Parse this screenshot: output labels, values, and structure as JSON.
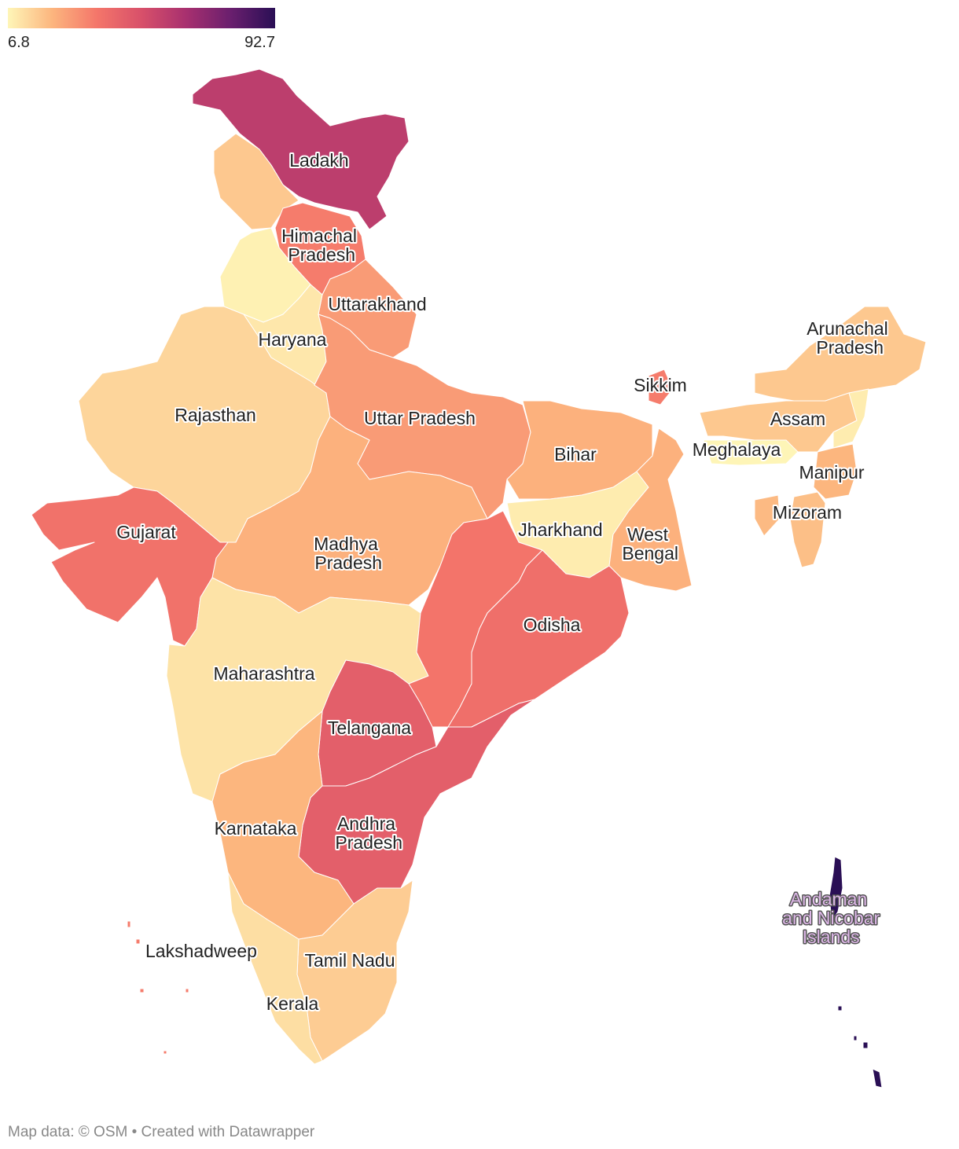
{
  "chart_data": {
    "type": "choropleth",
    "color_scale": {
      "domain": [
        6.8,
        92.7
      ],
      "colors": [
        "#fef6b8",
        "#fcb57e",
        "#f4766a",
        "#d8506a",
        "#a8306f",
        "#6a1f6e",
        "#2a0f55"
      ]
    },
    "regions": [
      {
        "name": "Ladakh",
        "value": 58
      },
      {
        "name": null,
        "value": 17
      },
      {
        "name": "Himachal Pradesh",
        "value": 34
      },
      {
        "name": null,
        "value": 8
      },
      {
        "name": "Uttarakhand",
        "value": 27
      },
      {
        "name": "Haryana",
        "value": 10
      },
      {
        "name": "Rajasthan",
        "value": 14
      },
      {
        "name": "Uttar Pradesh",
        "value": 27
      },
      {
        "name": "Bihar",
        "value": 22
      },
      {
        "name": "Jharkhand",
        "value": 9
      },
      {
        "name": "West Bengal",
        "value": 22
      },
      {
        "name": "Sikkim",
        "value": 34
      },
      {
        "name": "Madhya Pradesh",
        "value": 22
      },
      {
        "name": "Gujarat",
        "value": 37
      },
      {
        "name": "Maharashtra",
        "value": 11
      },
      {
        "name": null,
        "value": 36
      },
      {
        "name": "Odisha",
        "value": 38
      },
      {
        "name": "Telangana",
        "value": 44
      },
      {
        "name": "Andhra Pradesh",
        "value": 44
      },
      {
        "name": "Karnataka",
        "value": 21
      },
      {
        "name": "Tamil Nadu",
        "value": 16
      },
      {
        "name": "Kerala",
        "value": 12
      },
      {
        "name": "Arunachal Pradesh",
        "value": 17
      },
      {
        "name": "Assam",
        "value": 17
      },
      {
        "name": null,
        "value": 9
      },
      {
        "name": "Meghalaya",
        "value": 7
      },
      {
        "name": "Manipur",
        "value": 21
      },
      {
        "name": "Mizoram",
        "value": 19
      },
      {
        "name": null,
        "value": 20
      },
      {
        "name": "Lakshadweep",
        "value": 34
      },
      {
        "name": "Andaman and Nicobar Islands",
        "value": 92.7
      }
    ],
    "source": "Map data: © OSM  • Created with Datawrapper"
  }
}
